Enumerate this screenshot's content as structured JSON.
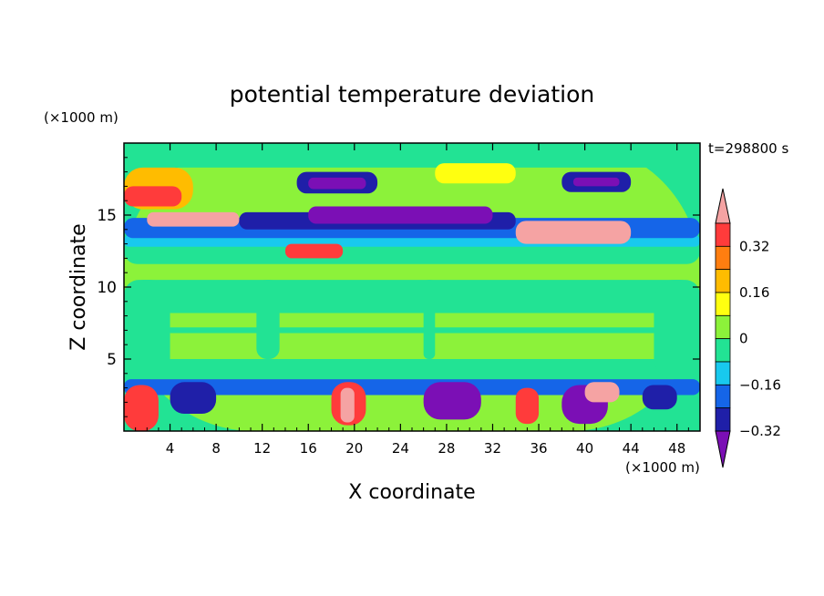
{
  "chart_data": {
    "type": "heatmap",
    "title": "potential temperature deviation",
    "xlabel": "X coordinate",
    "ylabel": "Z coordinate",
    "x_unit": "(×1000 m)",
    "y_unit": "(×1000 m)",
    "time_label": "t=298800 s",
    "xlim": [
      0,
      50
    ],
    "ylim": [
      0,
      20
    ],
    "xticks": [
      4,
      8,
      12,
      16,
      20,
      24,
      28,
      32,
      36,
      40,
      44,
      48
    ],
    "yticks": [
      5,
      10,
      15
    ],
    "colorbar": {
      "tick_values": [
        0.32,
        0.16,
        0,
        -0.16,
        -0.32
      ],
      "tick_labels": [
        "0.32",
        "0.16",
        "0",
        "−0.16",
        "−0.32"
      ],
      "level_step": 0.08,
      "colors": [
        "#7b0fb5",
        "#1f1fa8",
        "#1565e8",
        "#18c9ee",
        "#22e394",
        "#8cf23a",
        "#ffff10",
        "#ffbc00",
        "#ff7e10",
        "#ff3b3b",
        "#f5a3a3"
      ],
      "top_color": "#f5a3a3",
      "bottom_color": "#7b0fb5"
    },
    "background_color": "#22e394",
    "regions": [
      {
        "level": "0.08",
        "color": "#8cf23a",
        "x": [
          0,
          50
        ],
        "z": [
          0,
          20
        ]
      },
      {
        "level": "0",
        "color": "#22e394",
        "x": [
          0,
          50
        ],
        "z": [
          18.3,
          20
        ]
      },
      {
        "level": "0",
        "color": "#22e394",
        "x": [
          0,
          50
        ],
        "z": [
          11.6,
          13.6
        ]
      },
      {
        "level": "0",
        "color": "#22e394",
        "x": [
          0,
          50
        ],
        "z": [
          8.2,
          10.5
        ]
      },
      {
        "level": "0",
        "color": "#22e394",
        "x": [
          0,
          50
        ],
        "z": [
          3.6,
          5.0
        ]
      },
      {
        "level": "0",
        "color": "#22e394",
        "x": [
          0,
          50
        ],
        "z": [
          6.8,
          7.2
        ]
      },
      {
        "level": "0",
        "color": "#22e394",
        "x": [
          0,
          4
        ],
        "z": [
          3.6,
          10.5
        ]
      },
      {
        "level": "0",
        "color": "#22e394",
        "x": [
          46,
          50
        ],
        "z": [
          3.6,
          10.5
        ]
      },
      {
        "level": "0",
        "color": "#22e394",
        "x": [
          11.5,
          13.5
        ],
        "z": [
          5.0,
          10.5
        ]
      },
      {
        "level": "0",
        "color": "#22e394",
        "x": [
          26,
          27
        ],
        "z": [
          5.0,
          10.5
        ]
      },
      {
        "level": "-0.08",
        "color": "#18c9ee",
        "x": [
          0,
          50
        ],
        "z": [
          12.8,
          13.6
        ]
      },
      {
        "level": "-0.16",
        "color": "#1565e8",
        "x": [
          0,
          50
        ],
        "z": [
          13.4,
          14.8
        ]
      },
      {
        "level": "-0.32",
        "color": "#1f1fa8",
        "x": [
          10,
          34
        ],
        "z": [
          14.0,
          15.2
        ]
      },
      {
        "level": "-0.4",
        "color": "#7b0fb5",
        "x": [
          16,
          32
        ],
        "z": [
          14.4,
          15.6
        ]
      },
      {
        "level": "0.24",
        "color": "#ffbc00",
        "x": [
          0,
          6
        ],
        "z": [
          15.4,
          18.3
        ]
      },
      {
        "level": "0.32",
        "color": "#ff3b3b",
        "x": [
          0,
          5
        ],
        "z": [
          15.6,
          17.0
        ]
      },
      {
        "level": "0.4",
        "color": "#f5a3a3",
        "x": [
          2,
          10
        ],
        "z": [
          14.2,
          15.2
        ]
      },
      {
        "level": "0.4",
        "color": "#f5a3a3",
        "x": [
          34,
          44
        ],
        "z": [
          13.0,
          14.6
        ]
      },
      {
        "level": "-0.32",
        "color": "#1f1fa8",
        "x": [
          15,
          22
        ],
        "z": [
          16.5,
          18.0
        ]
      },
      {
        "level": "-0.4",
        "color": "#7b0fb5",
        "x": [
          16,
          21
        ],
        "z": [
          16.8,
          17.6
        ]
      },
      {
        "level": "-0.32",
        "color": "#1f1fa8",
        "x": [
          38,
          44
        ],
        "z": [
          16.6,
          18.0
        ]
      },
      {
        "level": "-0.4",
        "color": "#7b0fb5",
        "x": [
          39,
          43
        ],
        "z": [
          17.0,
          17.6
        ]
      },
      {
        "level": "0.16",
        "color": "#ffff10",
        "x": [
          27,
          34
        ],
        "z": [
          17.2,
          18.6
        ]
      },
      {
        "level": "0.32",
        "color": "#ff3b3b",
        "x": [
          14,
          19
        ],
        "z": [
          12.0,
          13.0
        ]
      },
      {
        "level": "-0.16",
        "color": "#1565e8",
        "x": [
          0,
          50
        ],
        "z": [
          2.5,
          3.6
        ]
      },
      {
        "level": "-0.32",
        "color": "#1f1fa8",
        "x": [
          4,
          8
        ],
        "z": [
          1.2,
          3.4
        ]
      },
      {
        "level": "-0.4",
        "color": "#7b0fb5",
        "x": [
          26,
          31
        ],
        "z": [
          0.8,
          3.4
        ]
      },
      {
        "level": "-0.4",
        "color": "#7b0fb5",
        "x": [
          38,
          42
        ],
        "z": [
          0.5,
          3.2
        ]
      },
      {
        "level": "-0.32",
        "color": "#1f1fa8",
        "x": [
          45,
          48
        ],
        "z": [
          1.5,
          3.2
        ]
      },
      {
        "level": "0.32",
        "color": "#ff3b3b",
        "x": [
          0,
          3
        ],
        "z": [
          0,
          3.2
        ]
      },
      {
        "level": "0.32",
        "color": "#ff3b3b",
        "x": [
          18,
          21
        ],
        "z": [
          0.4,
          3.4
        ]
      },
      {
        "level": "0.4",
        "color": "#f5a3a3",
        "x": [
          18.8,
          20
        ],
        "z": [
          0.6,
          3.0
        ]
      },
      {
        "level": "0.4",
        "color": "#f5a3a3",
        "x": [
          40,
          43
        ],
        "z": [
          2.0,
          3.4
        ]
      },
      {
        "level": "0.32",
        "color": "#ff3b3b",
        "x": [
          34,
          36
        ],
        "z": [
          0.5,
          3.0
        ]
      }
    ]
  }
}
